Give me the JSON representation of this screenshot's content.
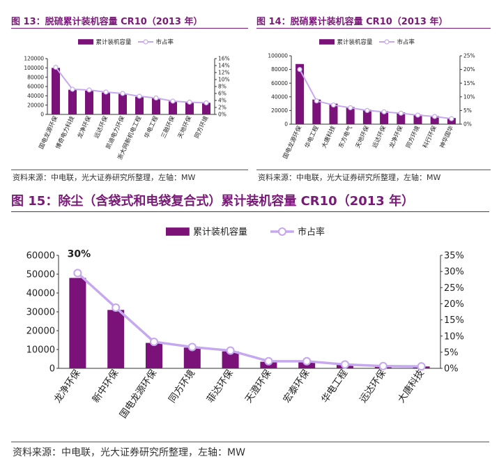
{
  "colors": {
    "bar": "#7b127a",
    "line": "#c6a8ee",
    "marker_fill": "#ffffff",
    "title": "#7a1a78"
  },
  "figures": [
    {
      "title": "图 13：脱硫累计装机容量 CR10（2013 年）",
      "source": "资料来源：中电联，光大证券研究所整理，左轴：MW",
      "chart_data": {
        "type": "bar",
        "categories": [
          "国电龙源环保",
          "博奇电力科技",
          "龙净环保",
          "远达环保",
          "凯迪电力环保",
          "浙大网新机电工程",
          "华电工程",
          "三融环保",
          "天地环保",
          "同方环境"
        ],
        "series": [
          {
            "name": "累计装机容量",
            "type": "bar",
            "axis": "left",
            "values": [
              100000,
              53000,
              51000,
              47000,
              44000,
              38000,
              35000,
              28000,
              26000,
              25000
            ]
          },
          {
            "name": "市占率",
            "type": "line",
            "axis": "right",
            "values": [
              13.5,
              7.2,
              7.0,
              6.4,
              6.0,
              5.2,
              4.7,
              3.8,
              3.5,
              3.3
            ]
          }
        ],
        "ylim_left": [
          0,
          120000
        ],
        "yticks_left": [
          "0",
          "20000",
          "40000",
          "60000",
          "80000",
          "100000",
          "120000"
        ],
        "ylim_right": [
          0,
          16
        ],
        "yticks_right": [
          "0%",
          "2%",
          "4%",
          "6%",
          "8%",
          "10%",
          "12%",
          "14%",
          "16%"
        ],
        "annotations": []
      }
    },
    {
      "title": "图 14：脱硝累计装机容量 CR10（2013 年）",
      "source": "资料来源：中电联，光大证券研究所整理，左轴：MW",
      "chart_data": {
        "type": "bar",
        "categories": [
          "国电龙源环保",
          "华电工程",
          "大唐科技",
          "东方电气",
          "天地环保",
          "远达环保",
          "龙净环保",
          "同方环境",
          "科行环保",
          "神华国华"
        ],
        "series": [
          {
            "name": "累计装机容量",
            "type": "bar",
            "axis": "left",
            "values": [
              88000,
              36000,
              30000,
              25000,
              21000,
              19000,
              17000,
              14000,
              12000,
              9000
            ]
          },
          {
            "name": "市占率",
            "type": "line",
            "axis": "right",
            "values": [
              20,
              8.5,
              7.0,
              6.0,
              5.0,
              4.5,
              4.0,
              3.3,
              2.8,
              2.0
            ]
          }
        ],
        "ylim_left": [
          0,
          100000
        ],
        "yticks_left": [
          "0",
          "20000",
          "40000",
          "60000",
          "80000",
          "100000"
        ],
        "ylim_right": [
          0,
          25
        ],
        "yticks_right": [
          "0%",
          "5%",
          "10%",
          "15%",
          "20%",
          "25%"
        ],
        "annotations": []
      }
    },
    {
      "title": "图 15：除尘（含袋式和电袋复合式）累计装机容量 CR10（2013 年）",
      "source": "资料来源：中电联，光大证券研究所整理，左轴：MW",
      "chart_data": {
        "type": "bar",
        "categories": [
          "龙净环保",
          "新中环保",
          "国电龙源环保",
          "同方环境",
          "菲达环保",
          "天澄环保",
          "宏泰环保",
          "华电工程",
          "远达环保",
          "大唐科技"
        ],
        "series": [
          {
            "name": "累计装机容量",
            "type": "bar",
            "axis": "left",
            "values": [
              48000,
              31000,
              13500,
              11000,
              9000,
              3500,
              3400,
              2000,
              1200,
              1000
            ]
          },
          {
            "name": "市占率",
            "type": "line",
            "axis": "right",
            "values": [
              29.5,
              18.8,
              8.2,
              6.6,
              5.5,
              2.2,
              2.2,
              1.2,
              0.7,
              0.6
            ]
          }
        ],
        "ylim_left": [
          0,
          60000
        ],
        "yticks_left": [
          "0",
          "10000",
          "20000",
          "30000",
          "40000",
          "50000",
          "60000"
        ],
        "ylim_right": [
          0,
          35
        ],
        "yticks_right": [
          "0%",
          "5%",
          "10%",
          "15%",
          "20%",
          "25%",
          "30%",
          "35%"
        ],
        "annotations": [
          {
            "text": "30%",
            "category_index": 0,
            "series_index": 0
          }
        ]
      }
    }
  ]
}
